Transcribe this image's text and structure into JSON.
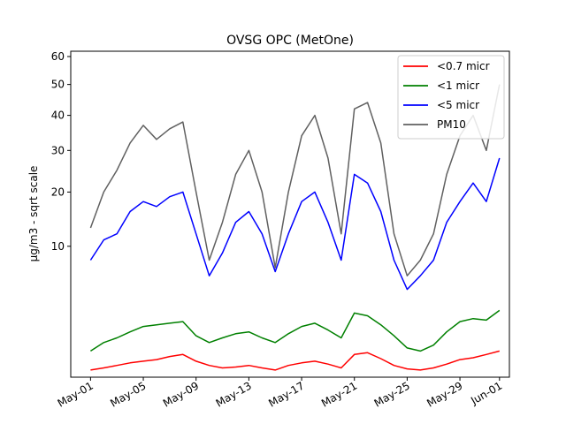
{
  "chart_data": {
    "type": "line",
    "title": "OVSG OPC (MetOne)",
    "xlabel": "",
    "ylabel": "µg/m3 - sqrt scale",
    "y_scale": "sqrt",
    "ylim": [
      0,
      62
    ],
    "xlim": [
      "2023-04-29T12:00",
      "2023-06-01T18:00"
    ],
    "y_ticks": [
      10,
      20,
      30,
      40,
      50,
      60
    ],
    "x_tick_labels": [
      "May-01",
      "May-05",
      "May-09",
      "May-13",
      "May-17",
      "May-21",
      "May-25",
      "May-29",
      "Jun-01"
    ],
    "x_tick_dates": [
      "2023-05-01",
      "2023-05-05",
      "2023-05-09",
      "2023-05-13",
      "2023-05-17",
      "2023-05-21",
      "2023-05-25",
      "2023-05-29",
      "2023-06-01"
    ],
    "grid": false,
    "legend_position": "top-right",
    "series": [
      {
        "name": "<0.7 micr",
        "color": "#ff0000",
        "x": [
          "2023-05-01",
          "2023-05-02",
          "2023-05-03",
          "2023-05-04",
          "2023-05-05",
          "2023-05-06",
          "2023-05-07",
          "2023-05-08",
          "2023-05-09",
          "2023-05-10",
          "2023-05-11",
          "2023-05-12",
          "2023-05-13",
          "2023-05-14",
          "2023-05-15",
          "2023-05-16",
          "2023-05-17",
          "2023-05-18",
          "2023-05-19",
          "2023-05-20",
          "2023-05-21",
          "2023-05-22",
          "2023-05-23",
          "2023-05-24",
          "2023-05-25",
          "2023-05-26",
          "2023-05-27",
          "2023-05-28",
          "2023-05-29",
          "2023-05-30",
          "2023-05-31",
          "2023-06-01"
        ],
        "values": [
          0.03,
          0.05,
          0.08,
          0.12,
          0.15,
          0.18,
          0.25,
          0.3,
          0.15,
          0.08,
          0.05,
          0.06,
          0.08,
          0.05,
          0.03,
          0.08,
          0.12,
          0.15,
          0.1,
          0.05,
          0.3,
          0.35,
          0.2,
          0.08,
          0.04,
          0.03,
          0.05,
          0.1,
          0.18,
          0.22,
          0.3,
          0.4
        ]
      },
      {
        "name": "<1 micr",
        "color": "#008000",
        "x": [
          "2023-05-01",
          "2023-05-02",
          "2023-05-03",
          "2023-05-04",
          "2023-05-05",
          "2023-05-06",
          "2023-05-07",
          "2023-05-08",
          "2023-05-09",
          "2023-05-10",
          "2023-05-11",
          "2023-05-12",
          "2023-05-13",
          "2023-05-14",
          "2023-05-15",
          "2023-05-16",
          "2023-05-17",
          "2023-05-18",
          "2023-05-19",
          "2023-05-20",
          "2023-05-21",
          "2023-05-22",
          "2023-05-23",
          "2023-05-24",
          "2023-05-25",
          "2023-05-26",
          "2023-05-27",
          "2023-05-28",
          "2023-05-29",
          "2023-05-30",
          "2023-05-31",
          "2023-06-01"
        ],
        "values": [
          0.4,
          0.7,
          0.9,
          1.2,
          1.5,
          1.6,
          1.7,
          1.8,
          1.0,
          0.7,
          0.9,
          1.1,
          1.2,
          0.9,
          0.7,
          1.1,
          1.5,
          1.7,
          1.3,
          0.9,
          2.4,
          2.2,
          1.6,
          1.0,
          0.5,
          0.4,
          0.6,
          1.2,
          1.8,
          2.0,
          1.9,
          2.6
        ]
      },
      {
        "name": "<5 micr",
        "color": "#0000ff",
        "x": [
          "2023-05-01",
          "2023-05-02",
          "2023-05-03",
          "2023-05-04",
          "2023-05-05",
          "2023-05-06",
          "2023-05-07",
          "2023-05-08",
          "2023-05-09",
          "2023-05-10",
          "2023-05-11",
          "2023-05-12",
          "2023-05-13",
          "2023-05-14",
          "2023-05-15",
          "2023-05-16",
          "2023-05-17",
          "2023-05-18",
          "2023-05-19",
          "2023-05-20",
          "2023-05-21",
          "2023-05-22",
          "2023-05-23",
          "2023-05-24",
          "2023-05-25",
          "2023-05-26",
          "2023-05-27",
          "2023-05-28",
          "2023-05-29",
          "2023-05-30",
          "2023-05-31",
          "2023-06-01"
        ],
        "values": [
          8.0,
          11.0,
          12.0,
          16.0,
          18.0,
          17.0,
          19.0,
          20.0,
          12.0,
          6.0,
          9.0,
          14.0,
          16.0,
          12.0,
          6.5,
          12.0,
          18.0,
          20.0,
          14.0,
          8.0,
          24.0,
          22.0,
          16.0,
          8.0,
          4.5,
          6.0,
          8.0,
          14.0,
          18.0,
          22.0,
          18.0,
          28.0
        ]
      },
      {
        "name": "PM10",
        "color": "#606060",
        "x": [
          "2023-05-01",
          "2023-05-02",
          "2023-05-03",
          "2023-05-04",
          "2023-05-05",
          "2023-05-06",
          "2023-05-07",
          "2023-05-08",
          "2023-05-09",
          "2023-05-10",
          "2023-05-11",
          "2023-05-12",
          "2023-05-13",
          "2023-05-14",
          "2023-05-15",
          "2023-05-16",
          "2023-05-17",
          "2023-05-18",
          "2023-05-19",
          "2023-05-20",
          "2023-05-21",
          "2023-05-22",
          "2023-05-23",
          "2023-05-24",
          "2023-05-25",
          "2023-05-26",
          "2023-05-27",
          "2023-05-28",
          "2023-05-29",
          "2023-05-30",
          "2023-05-31",
          "2023-06-01"
        ],
        "values": [
          13.0,
          20.0,
          25.0,
          32.0,
          37.0,
          33.0,
          36.0,
          38.0,
          20.0,
          8.0,
          14.0,
          24.0,
          30.0,
          20.0,
          7.0,
          20.0,
          34.0,
          40.0,
          28.0,
          12.0,
          42.0,
          44.0,
          32.0,
          12.0,
          6.0,
          8.0,
          12.0,
          24.0,
          34.0,
          40.0,
          30.0,
          50.0
        ]
      }
    ]
  }
}
